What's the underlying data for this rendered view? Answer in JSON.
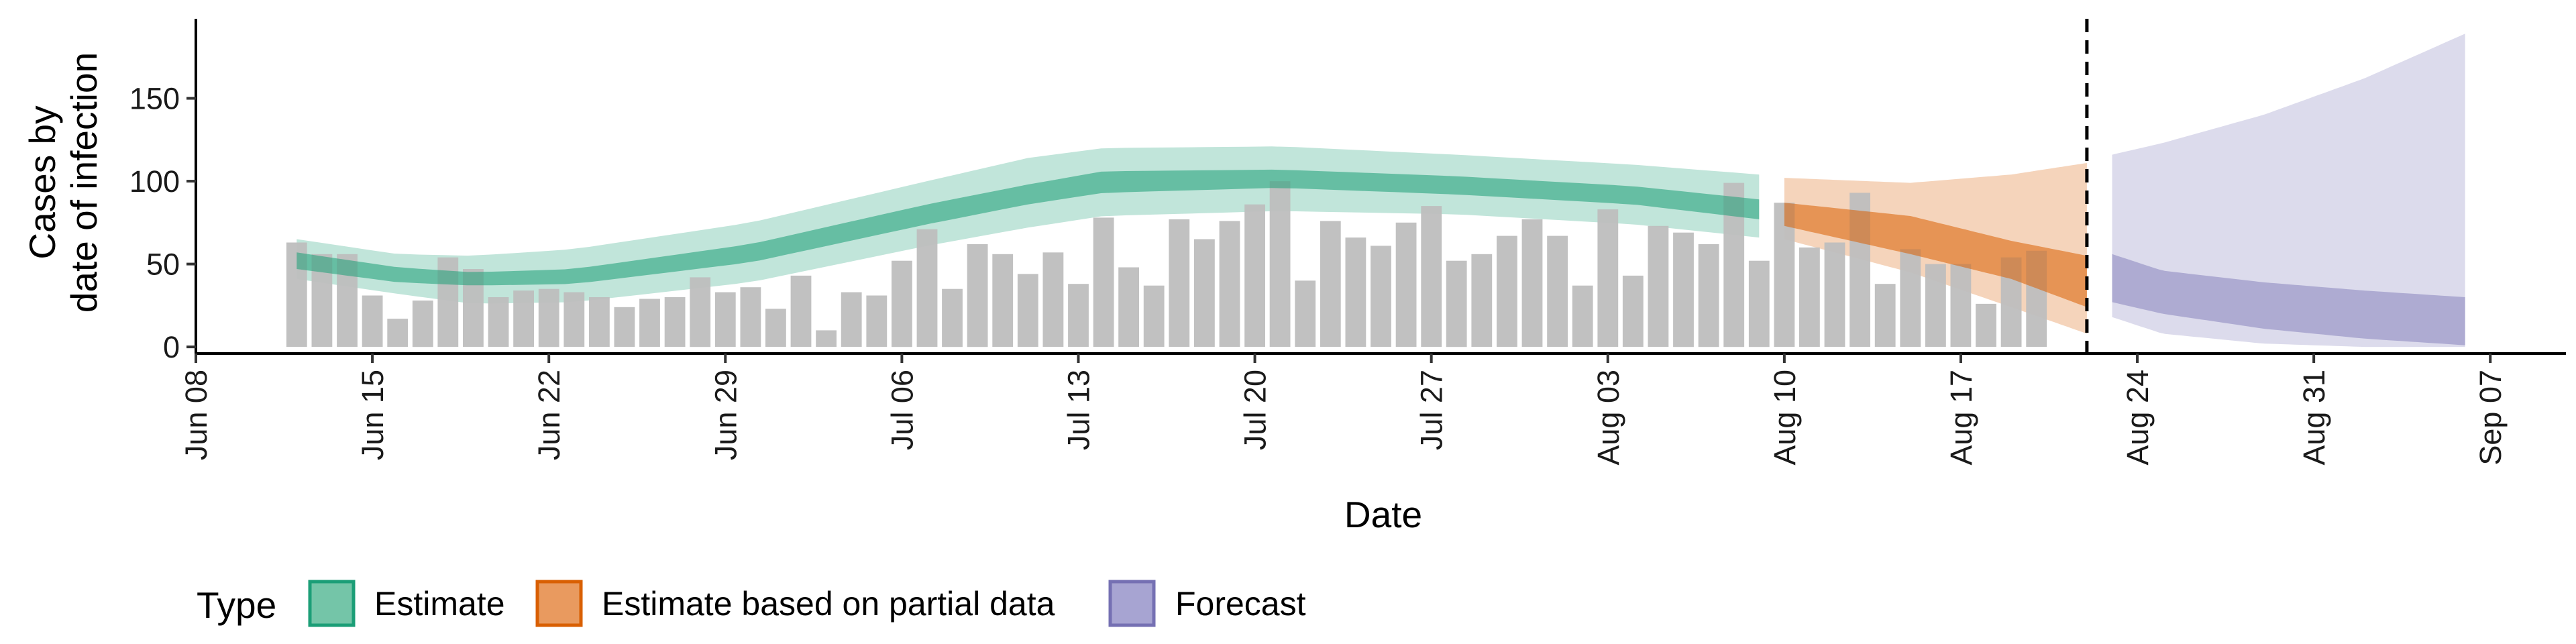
{
  "chart_data": {
    "type": "bar",
    "xlabel": "Date",
    "ylabel_lines": [
      "Cases by",
      "date of infection"
    ],
    "x_ticks": [
      "Jun 08",
      "Jun 15",
      "Jun 22",
      "Jun 29",
      "Jul 06",
      "Jul 13",
      "Jul 20",
      "Jul 27",
      "Aug 03",
      "Aug 10",
      "Aug 17",
      "Aug 24",
      "Aug 31",
      "Sep 07"
    ],
    "x_tick_offsets": [
      0,
      7,
      14,
      21,
      28,
      35,
      42,
      49,
      56,
      63,
      70,
      77,
      84,
      91
    ],
    "y_ticks": [
      0,
      50,
      100,
      150
    ],
    "xlim_dates": [
      "2020-06-07",
      "2020-09-09"
    ],
    "ylim": [
      -4,
      198
    ],
    "reference_line_date": "2020-08-21",
    "bars": {
      "start_date": "2020-06-11",
      "values": [
        63,
        56,
        56,
        31,
        17,
        28,
        54,
        47,
        30,
        34,
        35,
        33,
        30,
        24,
        29,
        30,
        42,
        33,
        36,
        23,
        43,
        10,
        33,
        31,
        52,
        71,
        35,
        62,
        56,
        44,
        57,
        38,
        78,
        48,
        37,
        77,
        65,
        76,
        86,
        100,
        40,
        76,
        66,
        61,
        75,
        85,
        52,
        56,
        67,
        77,
        67,
        37,
        83,
        43,
        73,
        69,
        62,
        99,
        52,
        87,
        60,
        63,
        93,
        38,
        59,
        50,
        50,
        26,
        54,
        58
      ],
      "color": "#bebebe"
    },
    "series": [
      {
        "name": "Estimate",
        "color": "#1b9e77",
        "band_dates": [
          "2020-06-11",
          "2020-06-15",
          "2020-06-18",
          "2020-06-22",
          "2020-06-29",
          "2020-07-06",
          "2020-07-10",
          "2020-07-13",
          "2020-07-20",
          "2020-07-27",
          "2020-08-03",
          "2020-08-08"
        ],
        "lower_90": [
          41,
          32,
          26,
          27,
          39,
          61,
          72,
          79,
          82,
          80,
          74,
          66
        ],
        "upper_90": [
          65,
          56,
          55,
          59,
          75,
          100,
          114,
          120,
          121,
          116,
          110,
          104
        ],
        "lower_50": [
          47,
          39,
          37,
          38,
          51,
          74,
          86,
          93,
          96,
          92,
          86,
          77
        ],
        "upper_50": [
          57,
          48,
          45,
          47,
          62,
          86,
          98,
          106,
          107,
          103,
          97,
          89
        ]
      },
      {
        "name": "Estimate based on partial data",
        "color": "#d95f02",
        "band_dates": [
          "2020-08-09",
          "2020-08-14",
          "2020-08-18",
          "2020-08-21"
        ],
        "lower_90": [
          65,
          45,
          24,
          8
        ],
        "upper_90": [
          102,
          99,
          104,
          111
        ],
        "lower_50": [
          73,
          56,
          41,
          24
        ],
        "upper_50": [
          87,
          79,
          64,
          55
        ]
      },
      {
        "name": "Forecast",
        "color": "#7570b3",
        "band_dates": [
          "2020-08-22",
          "2020-08-24",
          "2020-08-28",
          "2020-09-01",
          "2020-09-05"
        ],
        "lower_90": [
          18,
          8,
          2,
          0,
          0
        ],
        "upper_90": [
          116,
          123,
          140,
          162,
          189
        ],
        "lower_50": [
          27,
          20,
          11,
          5,
          1
        ],
        "upper_50": [
          56,
          46,
          39,
          34,
          30
        ]
      }
    ],
    "legend": {
      "title": "Type",
      "entries": [
        "Estimate",
        "Estimate based on partial data",
        "Forecast"
      ],
      "position": "bottom"
    },
    "grid": false
  }
}
